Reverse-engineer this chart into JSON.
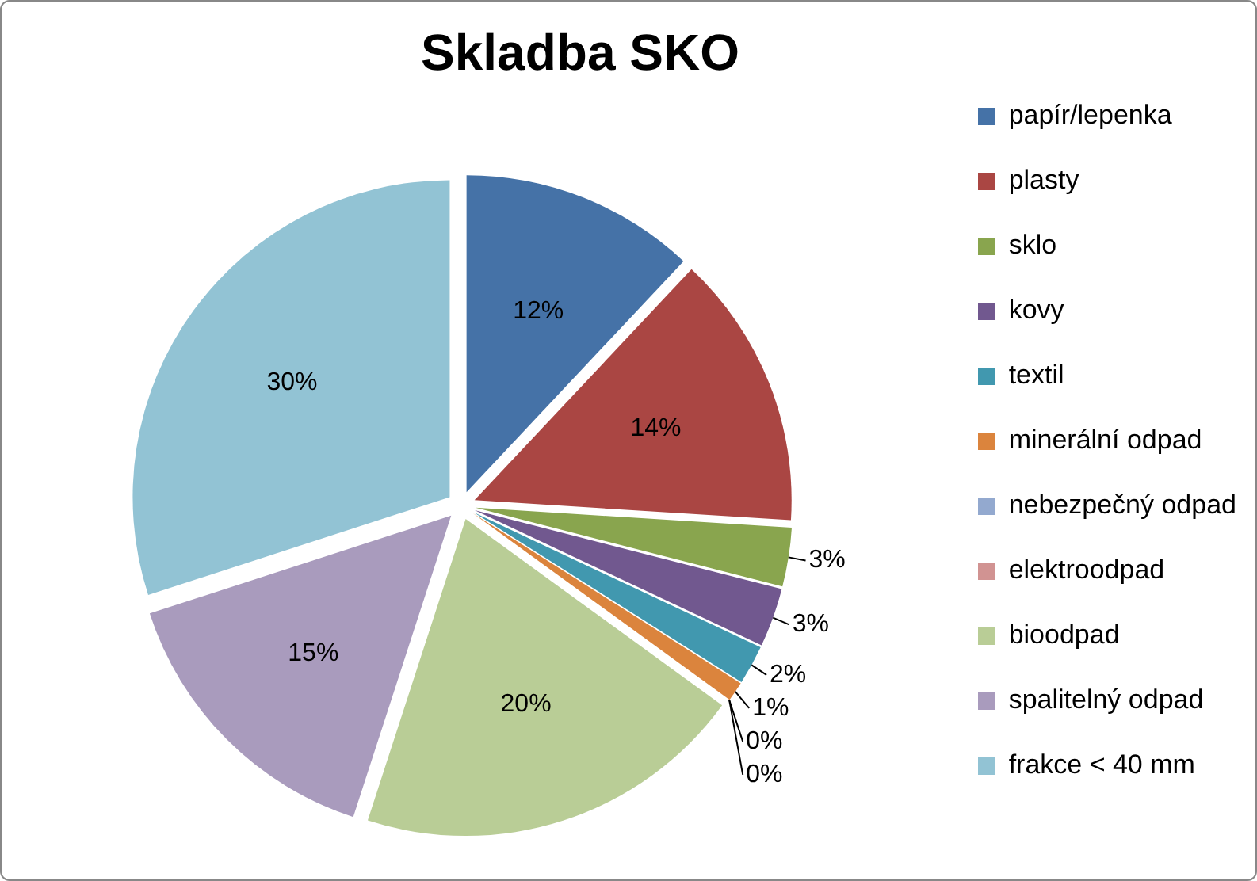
{
  "chart_data": {
    "type": "pie",
    "title": "Skladba SKO",
    "categories": [
      "papír/lepenka",
      "plasty",
      "sklo",
      "kovy",
      "textil",
      "minerální odpad",
      "nebezpečný odpad",
      "elektroodpad",
      "bioodpad",
      "spalitelný odpad",
      "frakce < 40 mm"
    ],
    "values": [
      12,
      14,
      3,
      3,
      2,
      1,
      0,
      0,
      20,
      15,
      30
    ],
    "value_labels": [
      "12%",
      "14%",
      "3%",
      "3%",
      "2%",
      "1%",
      "0%",
      "0%",
      "20%",
      "15%",
      "30%"
    ],
    "colors": [
      "#4572a7",
      "#aa4643",
      "#89a54e",
      "#71588f",
      "#4198af",
      "#db843d",
      "#93a9cf",
      "#d19392",
      "#b9cd96",
      "#a99bbd",
      "#92c3d4"
    ],
    "legend": "right"
  }
}
